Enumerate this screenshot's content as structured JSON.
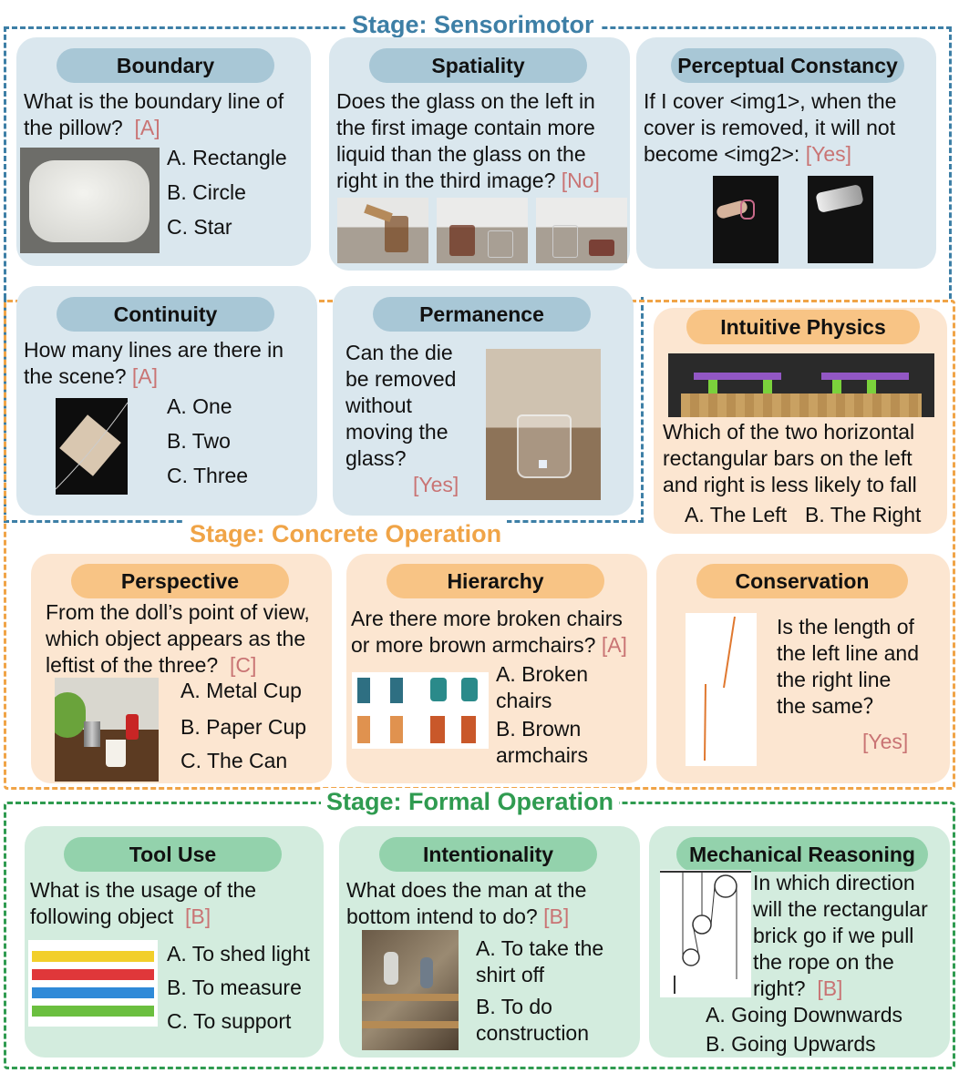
{
  "stages": {
    "sensorimotor": {
      "title": "Stage: Sensorimotor",
      "color": "#3d7fa6"
    },
    "concrete": {
      "title": "Stage: Concrete Operation",
      "color": "#f0a447"
    },
    "formal": {
      "title": "Stage: Formal Operation",
      "color": "#2f9b50"
    }
  },
  "cards": {
    "boundary": {
      "title": "Boundary",
      "question": "What is the boundary line of the pillow?",
      "answer": "[A]",
      "options": [
        "A. Rectangle",
        "B. Circle",
        "C. Star"
      ]
    },
    "spatiality": {
      "title": "Spatiality",
      "question": "Does the glass on the left in the first image contain more liquid than the glass on the right in the third image?",
      "answer": "[No]"
    },
    "perceptual_constancy": {
      "title": "Perceptual Constancy",
      "question": "If I cover <img1>, when the cover is removed, it will not become <img2>:",
      "answer": "[Yes]"
    },
    "continuity": {
      "title": "Continuity",
      "question": "How many lines are there in the scene?",
      "answer": "[A]",
      "options": [
        "A. One",
        "B. Two",
        "C. Three"
      ]
    },
    "permanence": {
      "title": "Permanence",
      "question": "Can the die be removed without moving the glass?",
      "answer": "[Yes]"
    },
    "intuitive_physics": {
      "title": "Intuitive Physics",
      "question": "Which of the two horizontal rectangular bars on the left and right is less likely to fall",
      "options": [
        "A. The Left",
        "B. The Right"
      ]
    },
    "perspective": {
      "title": "Perspective",
      "question": "From the doll’s point of view, which object appears as the leftist of the three?",
      "answer": "[C]",
      "options": [
        "A. Metal Cup",
        "B. Paper Cup",
        "C. The Can"
      ]
    },
    "hierarchy": {
      "title": "Hierarchy",
      "question": "Are there more broken chairs or more brown armchairs?",
      "answer": "[A]",
      "options": [
        "A. Broken chairs",
        "B. Brown armchairs"
      ]
    },
    "conservation": {
      "title": "Conservation",
      "question": "Is the length of the left line and the right line the same？",
      "answer": "[Yes]"
    },
    "tool_use": {
      "title": "Tool Use",
      "question": "What is the usage of the following object",
      "answer": "[B]",
      "options": [
        "A. To shed light",
        "B. To measure",
        "C. To support"
      ]
    },
    "intentionality": {
      "title": "Intentionality",
      "question": "What does the man at the bottom intend to do?",
      "answer": "[B]",
      "options": [
        "A. To take the shirt off",
        "B. To do construction"
      ]
    },
    "mechanical_reasoning": {
      "title": "Mechanical Reasoning",
      "question": "In which direction will the rectangular brick go if we pull the rope on the right?",
      "answer": "[B]",
      "options": [
        "A. Going Downwards",
        "B. Going Upwards"
      ]
    }
  }
}
